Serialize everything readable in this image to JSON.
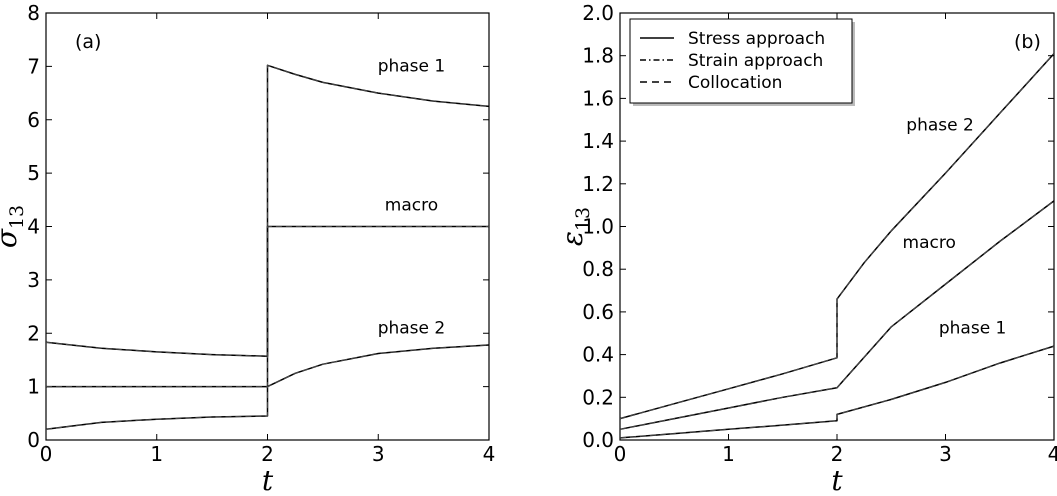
{
  "chart_data": [
    {
      "type": "line",
      "panel": "(a)",
      "xlabel": "t",
      "ylabel": "σ13",
      "xlim": [
        0,
        4
      ],
      "ylim": [
        0,
        8
      ],
      "xticks": [
        0,
        1,
        2,
        3,
        4
      ],
      "yticks": [
        0,
        1,
        2,
        3,
        4,
        5,
        6,
        7,
        8
      ],
      "grid": false,
      "series": [
        {
          "x": [
            0,
            0.5,
            1,
            1.5,
            2,
            2,
            2.25,
            2.5,
            3,
            3.5,
            4
          ],
          "values": [
            1.83,
            1.72,
            1.65,
            1.6,
            1.57,
            7.02,
            6.85,
            6.7,
            6.5,
            6.35,
            6.25
          ]
        },
        {
          "x": [
            0,
            1,
            2,
            2,
            3,
            4
          ],
          "values": [
            1.0,
            1.0,
            1.0,
            4.0,
            4.0,
            4.0
          ]
        },
        {
          "x": [
            0,
            0.5,
            1,
            1.5,
            2,
            2,
            2.25,
            2.5,
            3,
            3.5,
            4
          ],
          "values": [
            0.2,
            0.33,
            0.39,
            0.43,
            0.45,
            1.0,
            1.25,
            1.42,
            1.62,
            1.72,
            1.78
          ]
        }
      ],
      "annotations": [
        {
          "text": "phase 1",
          "x": 3.3,
          "y": 6.9
        },
        {
          "text": "macro",
          "x": 3.3,
          "y": 4.3
        },
        {
          "text": "phase 2",
          "x": 3.3,
          "y": 2.0
        }
      ]
    },
    {
      "type": "line",
      "panel": "(b)",
      "xlabel": "t",
      "ylabel": "ε13",
      "xlim": [
        0,
        4
      ],
      "ylim": [
        0,
        2.0
      ],
      "xticks": [
        0,
        1,
        2,
        3,
        4
      ],
      "yticks": [
        "0.0",
        "0.2",
        "0.4",
        "0.6",
        "0.8",
        "1.0",
        "1.2",
        "1.4",
        "1.6",
        "1.8",
        "2.0"
      ],
      "grid": false,
      "legend_position": "top-left",
      "legend": [
        {
          "label": "Stress approach",
          "style": "solid"
        },
        {
          "label": "Strain approach",
          "style": "dashdot"
        },
        {
          "label": "Collocation",
          "style": "dashed"
        }
      ],
      "series": [
        {
          "x": [
            0,
            0.5,
            1,
            1.5,
            2,
            2,
            2.25,
            2.5,
            3,
            3.5,
            4
          ],
          "values": [
            0.1,
            0.17,
            0.24,
            0.31,
            0.385,
            0.66,
            0.83,
            0.98,
            1.25,
            1.53,
            1.81
          ]
        },
        {
          "x": [
            0,
            0.5,
            1,
            1.5,
            2,
            2.5,
            3,
            3.5,
            4
          ],
          "values": [
            0.05,
            0.1,
            0.15,
            0.2,
            0.245,
            0.53,
            0.73,
            0.93,
            1.12
          ]
        },
        {
          "x": [
            0,
            0.5,
            1,
            1.5,
            2,
            2,
            2.5,
            3,
            3.5,
            4
          ],
          "values": [
            0.01,
            0.03,
            0.05,
            0.07,
            0.09,
            0.12,
            0.19,
            0.27,
            0.36,
            0.44
          ]
        }
      ],
      "annotations": [
        {
          "text": "phase 2",
          "x": 2.95,
          "y": 1.45
        },
        {
          "text": "macro",
          "x": 2.85,
          "y": 0.9
        },
        {
          "text": "phase 1",
          "x": 3.25,
          "y": 0.5
        }
      ]
    }
  ]
}
